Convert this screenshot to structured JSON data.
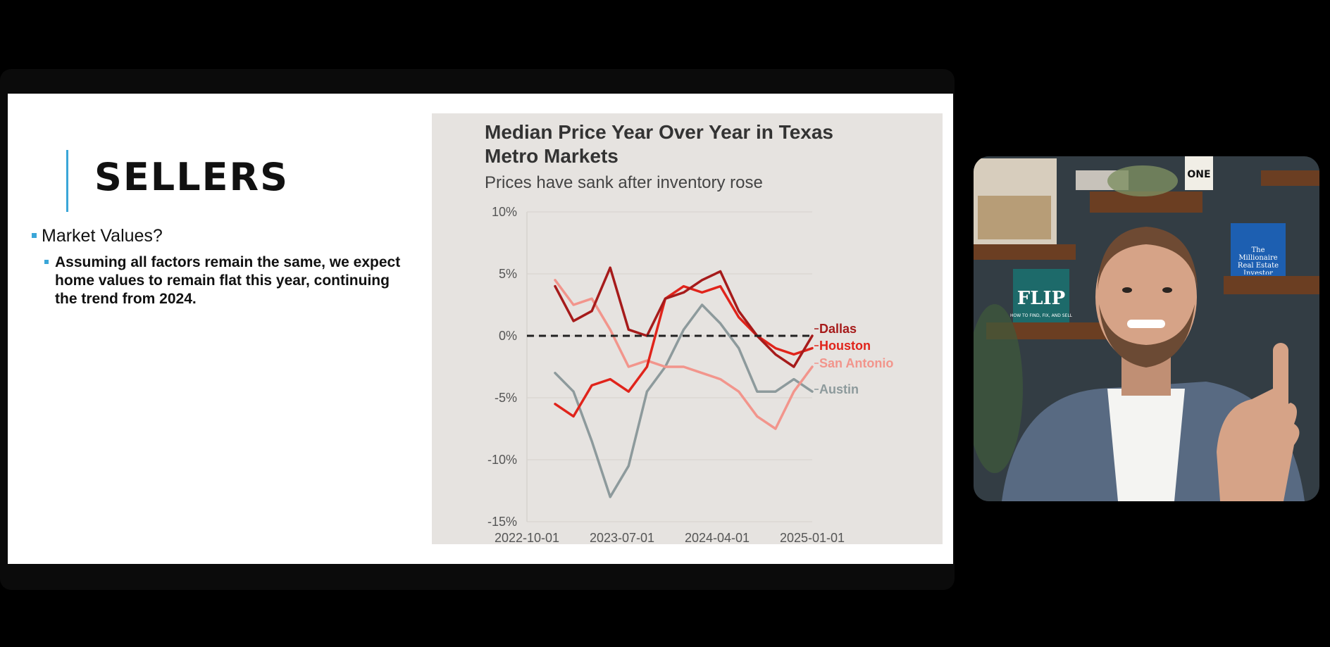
{
  "slide": {
    "title": "SELLERS",
    "bullet_main": "Market Values?",
    "bullet_sub": "Assuming all factors remain the same, we expect home values to remain flat this year, continuing the trend from 2024."
  },
  "chart_data": {
    "type": "line",
    "title": "Median Price Year Over Year in Texas Metro Markets",
    "title_lines": [
      "Median Price Year Over Year in Texas",
      "Metro Markets"
    ],
    "subtitle": "Prices have sank after inventory rose",
    "xlabel": "",
    "ylabel": "",
    "ylim": [
      -15,
      10
    ],
    "yticks": [
      "10%",
      "5%",
      "0%",
      "-5%",
      "-10%",
      "-15%"
    ],
    "ytick_values": [
      10,
      5,
      0,
      -5,
      -10,
      -15
    ],
    "xticks": [
      "2022-10-01",
      "2023-07-01",
      "2024-04-01",
      "2025-01-01"
    ],
    "x": [
      "2022-10",
      "2022-12",
      "2023-02",
      "2023-04",
      "2023-06",
      "2023-08",
      "2023-10",
      "2023-12",
      "2024-02",
      "2024-04",
      "2024-06",
      "2024-08",
      "2024-10",
      "2024-12",
      "2025-01"
    ],
    "reference_line": 0,
    "series": [
      {
        "name": "Dallas",
        "color": "#a61b1b",
        "values": [
          4.0,
          1.2,
          2.0,
          5.5,
          0.5,
          0.0,
          3.0,
          3.5,
          4.5,
          5.2,
          2.0,
          0.0,
          -1.5,
          -2.5,
          0.0
        ]
      },
      {
        "name": "Houston",
        "color": "#e0241b",
        "values": [
          -5.5,
          -6.5,
          -4.0,
          -3.5,
          -4.5,
          -2.5,
          3.0,
          4.0,
          3.5,
          4.0,
          1.5,
          0.0,
          -1.0,
          -1.5,
          -1.0
        ]
      },
      {
        "name": "San Antonio",
        "color": "#f2958c",
        "values": [
          4.5,
          2.5,
          3.0,
          0.5,
          -2.5,
          -2.0,
          -2.5,
          -2.5,
          -3.0,
          -3.5,
          -4.5,
          -6.5,
          -7.5,
          -4.5,
          -2.5
        ]
      },
      {
        "name": "Austin",
        "color": "#8d9a9c",
        "values": [
          -3.0,
          -4.5,
          -8.5,
          -13.0,
          -10.5,
          -4.5,
          -2.5,
          0.5,
          2.5,
          1.0,
          -1.0,
          -4.5,
          -4.5,
          -3.5,
          -4.5
        ]
      }
    ]
  },
  "colors": {
    "accent": "#3aa6d8",
    "slide_bg": "#ffffff",
    "chart_bg": "#e6e3e0",
    "screen_bg": "#000000"
  },
  "video": {
    "book_1": "FLIP",
    "book_1_sub": "HOW TO FIND, FIX, AND SELL",
    "book_2": "The Millionaire Real Estate Investor",
    "book_3": "ONE"
  }
}
